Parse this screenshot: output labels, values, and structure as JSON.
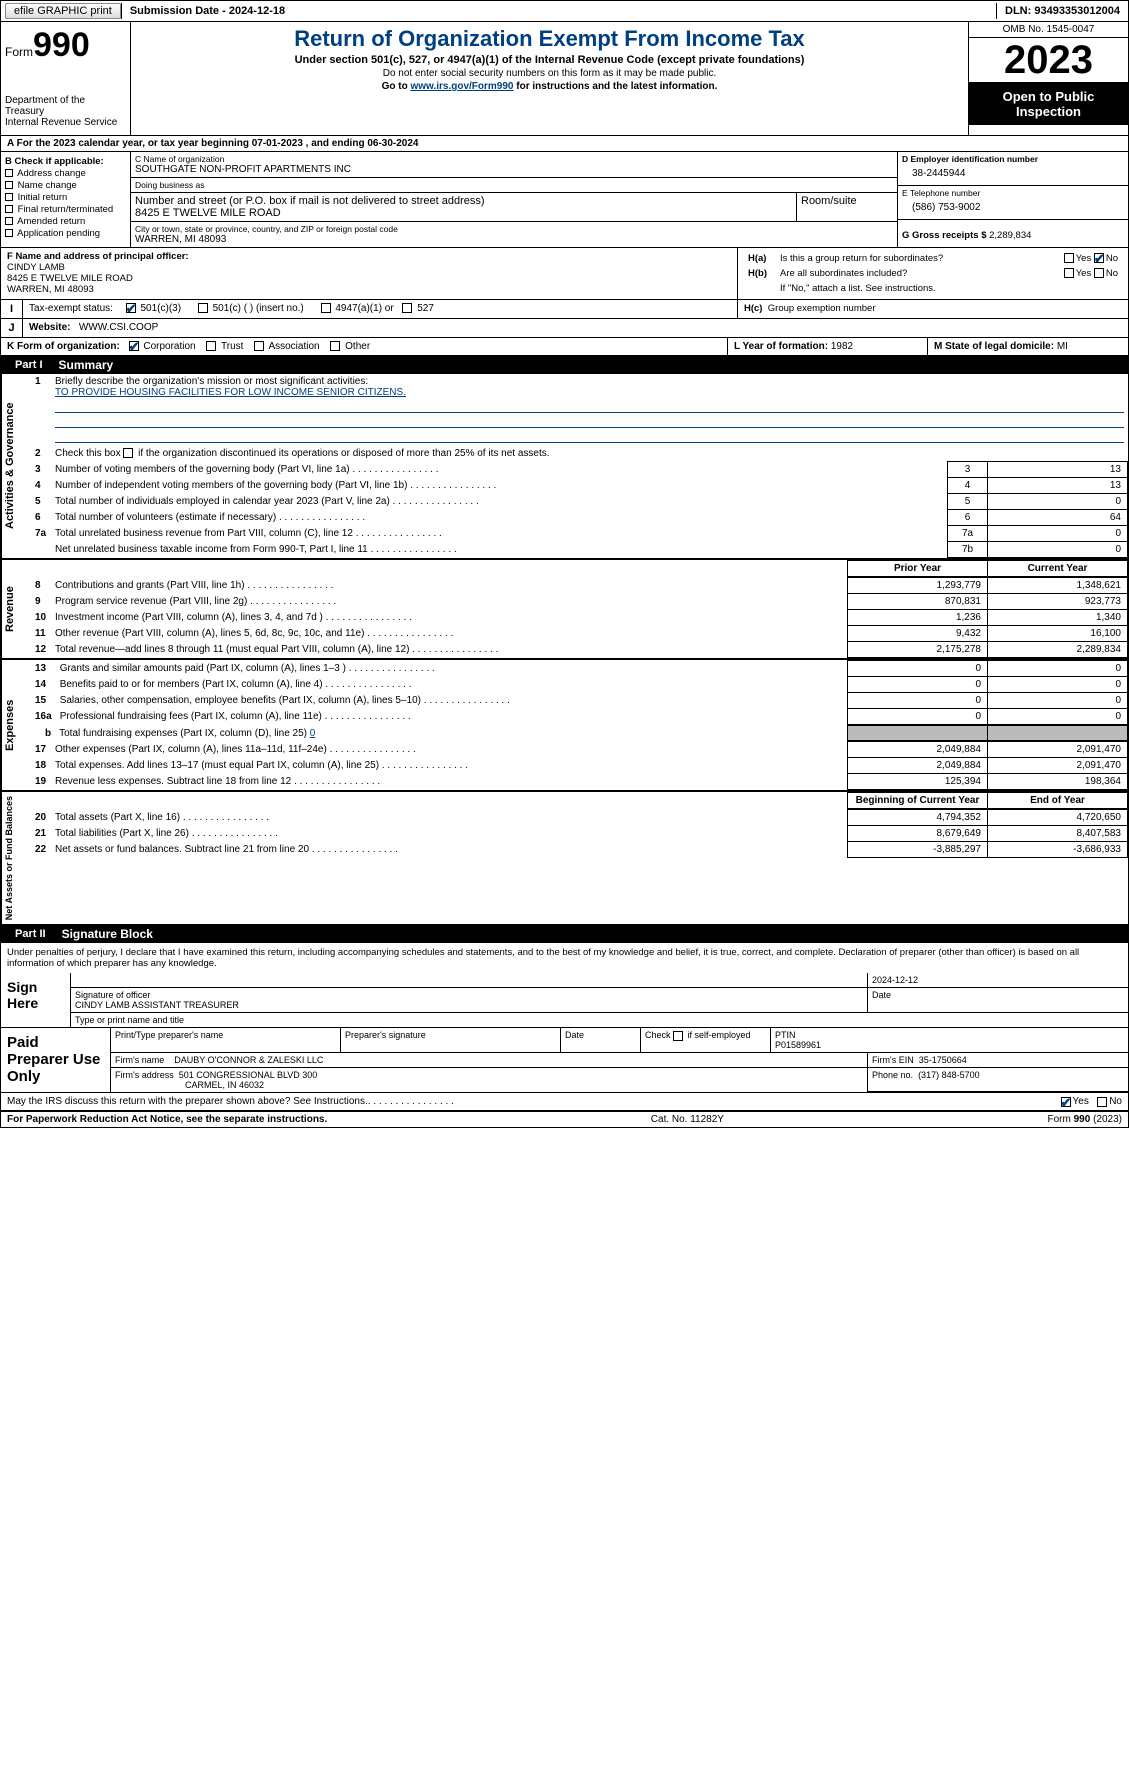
{
  "colors": {
    "accent": "#004080",
    "black": "#000000",
    "shade": "#bbbbbb",
    "purple": "#6a0dad"
  },
  "topbar": {
    "efile": "efile GRAPHIC print",
    "submission": "Submission Date - 2024-12-18",
    "dln": "DLN: 93493353012004"
  },
  "header": {
    "form_word": "Form",
    "form_num": "990",
    "dept": "Department of the Treasury",
    "irs": "Internal Revenue Service",
    "title": "Return of Organization Exempt From Income Tax",
    "sub1": "Under section 501(c), 527, or 4947(a)(1) of the Internal Revenue Code (except private foundations)",
    "sub2": "Do not enter social security numbers on this form as it may be made public.",
    "sub3_pre": "Go to ",
    "sub3_link": "www.irs.gov/Form990",
    "sub3_post": " for instructions and the latest information.",
    "omb": "OMB No. 1545-0047",
    "year": "2023",
    "open": "Open to Public Inspection"
  },
  "row_a": "For the 2023 calendar year, or tax year beginning 07-01-2023   , and ending 06-30-2024",
  "col_b": {
    "label": "B Check if applicable:",
    "items": [
      "Address change",
      "Name change",
      "Initial return",
      "Final return/terminated",
      "Amended return",
      "Application pending"
    ]
  },
  "block_c": {
    "name_lab": "C Name of organization",
    "name": "SOUTHGATE NON-PROFIT APARTMENTS INC",
    "dba_lab": "Doing business as",
    "dba": "",
    "addr_lab": "Number and street (or P.O. box if mail is not delivered to street address)",
    "addr": "8425 E TWELVE MILE ROAD",
    "room_lab": "Room/suite",
    "city_lab": "City or town, state or province, country, and ZIP or foreign postal code",
    "city": "WARREN, MI  48093"
  },
  "block_d": {
    "lab": "D Employer identification number",
    "val": "38-2445944"
  },
  "block_e": {
    "lab": "E Telephone number",
    "val": "(586) 753-9002"
  },
  "block_g": {
    "lab": "G Gross receipts $",
    "val": "2,289,834"
  },
  "block_f": {
    "lab": "F  Name and address of principal officer:",
    "name": "CINDY LAMB",
    "addr1": "8425 E TWELVE MILE ROAD",
    "addr2": "WARREN, MI  48093"
  },
  "block_h": {
    "a": "Is this a group return for subordinates?",
    "b": "Are all subordinates included?",
    "note": "If \"No,\" attach a list. See instructions.",
    "c": "Group exemption number",
    "a_pre": "H(a)",
    "b_pre": "H(b)",
    "c_pre": "H(c)",
    "yes": "Yes",
    "no": "No"
  },
  "row_i": {
    "lab": "Tax-exempt status:",
    "opts": [
      "501(c)(3)",
      "501(c) (  ) (insert no.)",
      "4947(a)(1) or",
      "527"
    ],
    "checked": 0
  },
  "row_j": {
    "lab": "Website:",
    "val": "WWW.CSI.COOP"
  },
  "row_k": {
    "lab": "K Form of organization:",
    "opts": [
      "Corporation",
      "Trust",
      "Association",
      "Other"
    ],
    "checked": 0
  },
  "row_l": {
    "lab": "L Year of formation:",
    "val": "1982"
  },
  "row_m": {
    "lab": "M State of legal domicile:",
    "val": "MI"
  },
  "part1": {
    "hdr_num": "Part I",
    "hdr_title": "Summary",
    "line1_lab": "Briefly describe the organization's mission or most significant activities:",
    "line1_val": "TO PROVIDE HOUSING FACILITIES FOR LOW INCOME SENIOR CITIZENS.",
    "line2": "Check this box      if the organization discontinued its operations or disposed of more than 25% of its net assets.",
    "governance_rows": [
      {
        "n": "3",
        "d": "Number of voting members of the governing body (Part VI, line 1a)",
        "box": "3",
        "v": "13"
      },
      {
        "n": "4",
        "d": "Number of independent voting members of the governing body (Part VI, line 1b)",
        "box": "4",
        "v": "13"
      },
      {
        "n": "5",
        "d": "Total number of individuals employed in calendar year 2023 (Part V, line 2a)",
        "box": "5",
        "v": "0"
      },
      {
        "n": "6",
        "d": "Total number of volunteers (estimate if necessary)",
        "box": "6",
        "v": "64"
      },
      {
        "n": "7a",
        "d": "Total unrelated business revenue from Part VIII, column (C), line 12",
        "box": "7a",
        "v": "0"
      },
      {
        "n": "",
        "d": "Net unrelated business taxable income from Form 990-T, Part I, line 11",
        "box": "7b",
        "v": "0"
      }
    ],
    "prior_hdr": "Prior Year",
    "curr_hdr": "Current Year",
    "revenue_rows": [
      {
        "n": "8",
        "d": "Contributions and grants (Part VIII, line 1h)",
        "p": "1,293,779",
        "c": "1,348,621"
      },
      {
        "n": "9",
        "d": "Program service revenue (Part VIII, line 2g)",
        "p": "870,831",
        "c": "923,773"
      },
      {
        "n": "10",
        "d": "Investment income (Part VIII, column (A), lines 3, 4, and 7d )",
        "p": "1,236",
        "c": "1,340"
      },
      {
        "n": "11",
        "d": "Other revenue (Part VIII, column (A), lines 5, 6d, 8c, 9c, 10c, and 11e)",
        "p": "9,432",
        "c": "16,100"
      },
      {
        "n": "12",
        "d": "Total revenue—add lines 8 through 11 (must equal Part VIII, column (A), line 12)",
        "p": "2,175,278",
        "c": "2,289,834"
      }
    ],
    "expense_rows": [
      {
        "n": "13",
        "d": "Grants and similar amounts paid (Part IX, column (A), lines 1–3 )",
        "p": "0",
        "c": "0"
      },
      {
        "n": "14",
        "d": "Benefits paid to or for members (Part IX, column (A), line 4)",
        "p": "0",
        "c": "0"
      },
      {
        "n": "15",
        "d": "Salaries, other compensation, employee benefits (Part IX, column (A), lines 5–10)",
        "p": "0",
        "c": "0"
      },
      {
        "n": "16a",
        "d": "Professional fundraising fees (Part IX, column (A), line 11e)",
        "p": "0",
        "c": "0"
      }
    ],
    "line16b_pre": "b",
    "line16b": "Total fundraising expenses (Part IX, column (D), line 25)",
    "line16b_val": "0",
    "expense_rows2": [
      {
        "n": "17",
        "d": "Other expenses (Part IX, column (A), lines 11a–11d, 11f–24e)",
        "p": "2,049,884",
        "c": "2,091,470"
      },
      {
        "n": "18",
        "d": "Total expenses. Add lines 13–17 (must equal Part IX, column (A), line 25)",
        "p": "2,049,884",
        "c": "2,091,470"
      },
      {
        "n": "19",
        "d": "Revenue less expenses. Subtract line 18 from line 12",
        "p": "125,394",
        "c": "198,364"
      }
    ],
    "bcy_hdr": "Beginning of Current Year",
    "eoy_hdr": "End of Year",
    "net_rows": [
      {
        "n": "20",
        "d": "Total assets (Part X, line 16)",
        "p": "4,794,352",
        "c": "4,720,650"
      },
      {
        "n": "21",
        "d": "Total liabilities (Part X, line 26)",
        "p": "8,679,649",
        "c": "8,407,583"
      },
      {
        "n": "22",
        "d": "Net assets or fund balances. Subtract line 21 from line 20",
        "p": "-3,885,297",
        "c": "-3,686,933"
      }
    ],
    "vert_gov": "Activities & Governance",
    "vert_rev": "Revenue",
    "vert_exp": "Expenses",
    "vert_net": "Net Assets or Fund Balances"
  },
  "part2": {
    "hdr_num": "Part II",
    "hdr_title": "Signature Block",
    "penalty": "Under penalties of perjury, I declare that I have examined this return, including accompanying schedules and statements, and to the best of my knowledge and belief, it is true, correct, and complete. Declaration of preparer (other than officer) is based on all information of which preparer has any knowledge.",
    "sign_here": "Sign Here",
    "sig_officer_lab": "Signature of officer",
    "sig_officer": "CINDY LAMB  ASSISTANT TREASURER",
    "sig_date_top": "2024-12-12",
    "date_lab": "Date",
    "type_lab": "Type or print name and title",
    "paid": "Paid Preparer Use Only",
    "prep_name_lab": "Print/Type preparer's name",
    "prep_sig_lab": "Preparer's signature",
    "check_self": "Check        if self-employed",
    "ptin_lab": "PTIN",
    "ptin": "P01589961",
    "firm_name_lab": "Firm's name",
    "firm_name": "DAUBY O'CONNOR & ZALESKI LLC",
    "firm_ein_lab": "Firm's EIN",
    "firm_ein": "35-1750664",
    "firm_addr_lab": "Firm's address",
    "firm_addr1": "501 CONGRESSIONAL BLVD 300",
    "firm_addr2": "CARMEL, IN  46032",
    "phone_lab": "Phone no.",
    "phone": "(317) 848-5700",
    "discuss": "May the IRS discuss this return with the preparer shown above? See Instructions.",
    "yes": "Yes",
    "no": "No"
  },
  "footer": {
    "left": "For Paperwork Reduction Act Notice, see the separate instructions.",
    "mid": "Cat. No. 11282Y",
    "right_pre": "Form ",
    "right_bold": "990",
    "right_post": " (2023)"
  }
}
